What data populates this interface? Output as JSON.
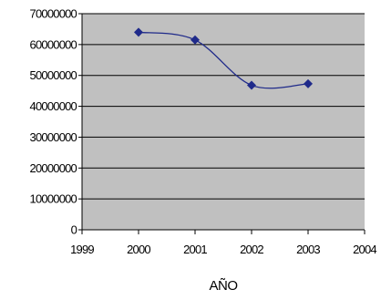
{
  "chart_data": {
    "type": "scatter",
    "xlabel": "AÑO",
    "ylabel": "",
    "xlim": [
      1999,
      2004
    ],
    "ylim": [
      0,
      70000000
    ],
    "x_ticks": [
      1999,
      2000,
      2001,
      2002,
      2003,
      2004
    ],
    "y_ticks": [
      0,
      10000000,
      20000000,
      30000000,
      40000000,
      50000000,
      60000000,
      70000000
    ],
    "grid": "horizontal",
    "line": "smoothed",
    "marker": "diamond",
    "colors": {
      "plot_background": "#c0c0c0",
      "series": "#1f2a8a",
      "gridline": "#000000"
    },
    "series": [
      {
        "x": [
          2000,
          2001,
          2002,
          2003
        ],
        "y": [
          64000000,
          61500000,
          46800000,
          47300000
        ]
      }
    ]
  }
}
